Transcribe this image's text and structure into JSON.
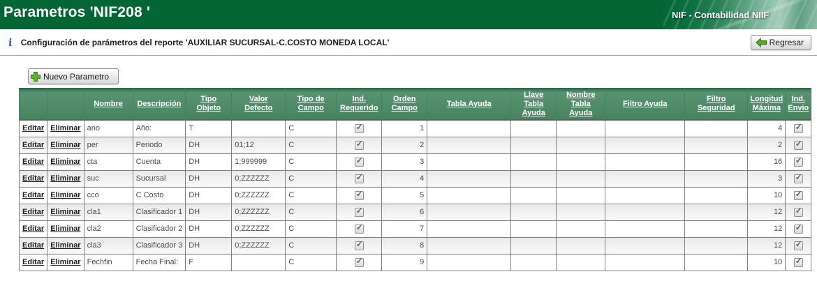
{
  "banner": {
    "title": "Parametros 'NIF208 '",
    "app_label": "NIF - Contabilidad NIIF"
  },
  "subheader": {
    "description": "Configuración de parámetros del reporte 'AUXILIAR SUCURSAL-C.COSTO MONEDA LOCAL'",
    "back_button": "Regresar"
  },
  "toolbar": {
    "new_button": "Nuevo Parametro"
  },
  "icons": {
    "info_icon": "i",
    "check_icon": "✓",
    "plus_icon": "plus",
    "back_arrow_icon": "left-arrow"
  },
  "colors": {
    "banner_green": "#046635",
    "header_green": "#4f8b66",
    "link_color": "#222222",
    "alt_row": "#e9e9e9"
  },
  "table": {
    "action_labels": {
      "edit": "Editar",
      "delete": "Eliminar"
    },
    "columns": [
      "Nombre",
      "Descripción",
      "Tipo Objeto",
      "Valor Defecto",
      "Tipo de Campo",
      "Ind. Requerido",
      "Orden Campo",
      "Tabla Ayuda",
      "Llave Tabla Ayuda",
      "Nombre Tabla Ayuda",
      "Filtro Ayuda",
      "Filtro Seguridad",
      "Longitud Máxima",
      "Ind. Envio"
    ],
    "rows": [
      {
        "nombre": "ano",
        "descripcion": "Año:",
        "tipo_objeto": "T",
        "valor_defecto": "",
        "tipo_de_campo": "C",
        "ind_requerido": true,
        "orden_campo": "1",
        "tabla_ayuda": "",
        "llave_tabla_ayuda": "",
        "nombre_tabla_ayuda": "",
        "filtro_ayuda": "",
        "filtro_seguridad": "",
        "longitud_maxima": "4",
        "ind_envio": true
      },
      {
        "nombre": "per",
        "descripcion": "Periodo",
        "tipo_objeto": "DH",
        "valor_defecto": "01;12",
        "tipo_de_campo": "C",
        "ind_requerido": true,
        "orden_campo": "2",
        "tabla_ayuda": "",
        "llave_tabla_ayuda": "",
        "nombre_tabla_ayuda": "",
        "filtro_ayuda": "",
        "filtro_seguridad": "",
        "longitud_maxima": "2",
        "ind_envio": true
      },
      {
        "nombre": "cta",
        "descripcion": "Cuenta",
        "tipo_objeto": "DH",
        "valor_defecto": "1;999999",
        "tipo_de_campo": "C",
        "ind_requerido": true,
        "orden_campo": "3",
        "tabla_ayuda": "",
        "llave_tabla_ayuda": "",
        "nombre_tabla_ayuda": "",
        "filtro_ayuda": "",
        "filtro_seguridad": "",
        "longitud_maxima": "16",
        "ind_envio": true
      },
      {
        "nombre": "suc",
        "descripcion": "Sucursal",
        "tipo_objeto": "DH",
        "valor_defecto": "0;ZZZZZZ",
        "tipo_de_campo": "C",
        "ind_requerido": true,
        "orden_campo": "4",
        "tabla_ayuda": "",
        "llave_tabla_ayuda": "",
        "nombre_tabla_ayuda": "",
        "filtro_ayuda": "",
        "filtro_seguridad": "",
        "longitud_maxima": "3",
        "ind_envio": true
      },
      {
        "nombre": "cco",
        "descripcion": "C Costo",
        "tipo_objeto": "DH",
        "valor_defecto": "0;ZZZZZZ",
        "tipo_de_campo": "C",
        "ind_requerido": true,
        "orden_campo": "5",
        "tabla_ayuda": "",
        "llave_tabla_ayuda": "",
        "nombre_tabla_ayuda": "",
        "filtro_ayuda": "",
        "filtro_seguridad": "",
        "longitud_maxima": "10",
        "ind_envio": true
      },
      {
        "nombre": "cla1",
        "descripcion": "Clasificador 1",
        "tipo_objeto": "DH",
        "valor_defecto": "0;ZZZZZZ",
        "tipo_de_campo": "C",
        "ind_requerido": true,
        "orden_campo": "6",
        "tabla_ayuda": "",
        "llave_tabla_ayuda": "",
        "nombre_tabla_ayuda": "",
        "filtro_ayuda": "",
        "filtro_seguridad": "",
        "longitud_maxima": "12",
        "ind_envio": true
      },
      {
        "nombre": "cla2",
        "descripcion": "Clasificador 2",
        "tipo_objeto": "DH",
        "valor_defecto": "0;ZZZZZZ",
        "tipo_de_campo": "C",
        "ind_requerido": true,
        "orden_campo": "7",
        "tabla_ayuda": "",
        "llave_tabla_ayuda": "",
        "nombre_tabla_ayuda": "",
        "filtro_ayuda": "",
        "filtro_seguridad": "",
        "longitud_maxima": "12",
        "ind_envio": true
      },
      {
        "nombre": "cla3",
        "descripcion": "Clasificador 3",
        "tipo_objeto": "DH",
        "valor_defecto": "0;ZZZZZZ",
        "tipo_de_campo": "C",
        "ind_requerido": true,
        "orden_campo": "8",
        "tabla_ayuda": "",
        "llave_tabla_ayuda": "",
        "nombre_tabla_ayuda": "",
        "filtro_ayuda": "",
        "filtro_seguridad": "",
        "longitud_maxima": "12",
        "ind_envio": true
      },
      {
        "nombre": "Fechfin",
        "descripcion": "Fecha Final:",
        "tipo_objeto": "F",
        "valor_defecto": "",
        "tipo_de_campo": "C",
        "ind_requerido": true,
        "orden_campo": "9",
        "tabla_ayuda": "",
        "llave_tabla_ayuda": "",
        "nombre_tabla_ayuda": "",
        "filtro_ayuda": "",
        "filtro_seguridad": "",
        "longitud_maxima": "10",
        "ind_envio": true
      }
    ]
  }
}
